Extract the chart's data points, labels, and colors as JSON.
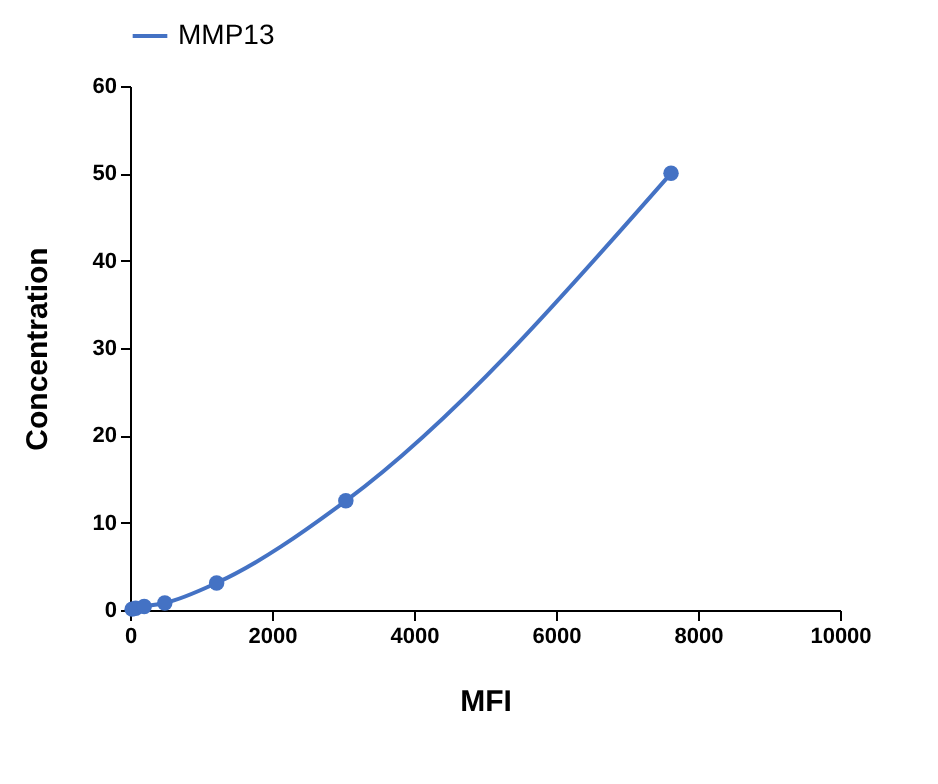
{
  "chart_data": {
    "type": "line",
    "xlabel": "MFI",
    "ylabel": "Concentration",
    "x": [
      30,
      80,
      200,
      490,
      1220,
      3040,
      7620
    ],
    "series": [
      {
        "name": "MMP13",
        "color": "#4472c4",
        "values": [
          0.1,
          0.2,
          0.4,
          0.8,
          3.1,
          12.5,
          50
        ]
      }
    ],
    "xlim": [
      0,
      10000
    ],
    "xticks": [
      0,
      2000,
      4000,
      6000,
      8000,
      10000
    ],
    "ylim": [
      0,
      60
    ],
    "yticks": [
      0,
      10,
      20,
      30,
      40,
      50,
      60
    ],
    "grid": false,
    "legend": "top",
    "marker": "circle",
    "line_style": "solid"
  }
}
